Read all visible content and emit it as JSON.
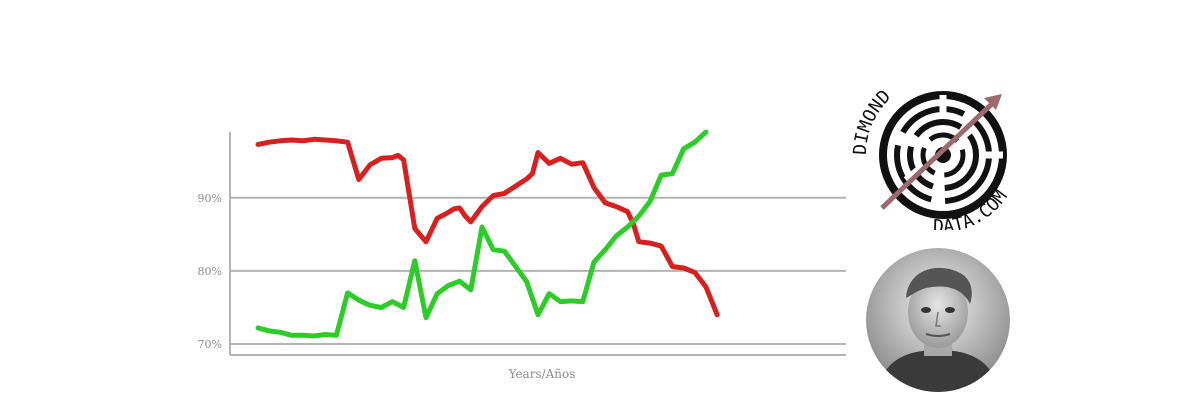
{
  "chart_data": {
    "type": "line",
    "title": "",
    "xlabel": "Years/Años",
    "ylabel": "",
    "ylim": [
      68.5,
      99
    ],
    "yticks": [
      70,
      80,
      90
    ],
    "ytick_labels": [
      "70%",
      "80%",
      "90%"
    ],
    "grid": "horizontal",
    "series": [
      {
        "color": "#d92020",
        "x": [
          0,
          2,
          4,
          6,
          8,
          10,
          12,
          14,
          16,
          18,
          20,
          22,
          24,
          25,
          26,
          28,
          30,
          32,
          34,
          35,
          36,
          37,
          38,
          40,
          42,
          44,
          46,
          48,
          49,
          50,
          52,
          54,
          56,
          58,
          60,
          62,
          64,
          66,
          67,
          68,
          70,
          72,
          74,
          76,
          78,
          80,
          82,
          84,
          86,
          88,
          90,
          92,
          94,
          96,
          98,
          100
        ],
        "values": [
          97.3,
          97.6,
          97.8,
          97.9,
          97.8,
          98.0,
          97.9,
          97.8,
          97.6,
          92.5,
          94.5,
          95.4,
          95.5,
          95.8,
          95.2,
          85.8,
          84.0,
          87.2,
          88.0,
          88.5,
          88.6,
          87.5,
          86.7,
          88.8,
          90.3,
          90.6,
          91.6,
          92.6,
          93.3,
          96.2,
          94.7,
          95.4,
          94.6,
          94.8,
          91.4,
          89.3,
          88.8,
          88.1,
          86.5,
          84.0,
          83.8,
          83.4,
          80.6,
          80.4,
          79.8,
          77.8,
          74.0,
          74.0,
          74.0,
          74.0,
          74.0,
          74.0,
          74.0,
          74.0,
          74.0,
          74.0
        ]
      },
      {
        "color": "#2ecc28",
        "x": [
          0,
          2,
          4,
          6,
          8,
          10,
          12,
          14,
          16,
          18,
          20,
          22,
          24,
          26,
          28,
          30,
          32,
          34,
          36,
          38,
          40,
          42,
          44,
          46,
          48,
          50,
          52,
          54,
          56,
          58,
          60,
          62,
          64,
          66,
          68,
          70,
          72,
          74,
          76,
          78,
          80,
          82,
          84,
          86,
          88,
          90,
          92,
          94,
          96,
          98,
          100
        ],
        "values": [
          72.2,
          71.8,
          71.6,
          71.2,
          71.2,
          71.1,
          71.3,
          71.2,
          77.0,
          76.0,
          75.3,
          75.0,
          75.8,
          75.0,
          81.4,
          73.6,
          76.9,
          78.0,
          78.6,
          77.4,
          86.0,
          82.9,
          82.7,
          80.6,
          78.5,
          74.0,
          76.9,
          75.8,
          75.9,
          75.8,
          81.2,
          82.9,
          84.8,
          86.0,
          87.5,
          89.5,
          93.1,
          93.3,
          96.7,
          97.6,
          99.0,
          99.0,
          99.0,
          99.0,
          99.0,
          99.0,
          99.0,
          99.0,
          99.0,
          99.0,
          99.0
        ]
      }
    ]
  },
  "brand": {
    "name_top": "DIMOND",
    "name_bottom": "DATA.COM",
    "colors": {
      "ring": "#111111",
      "arrow": "#9c6a6a"
    }
  }
}
